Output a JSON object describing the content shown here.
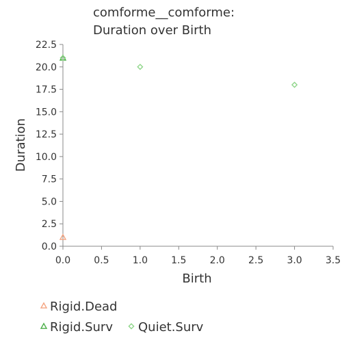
{
  "chart_data": {
    "type": "scatter",
    "title_lines": [
      "comforme__comforme:",
      "Duration over Birth"
    ],
    "xlabel": "Birth",
    "ylabel": "Duration",
    "xlim": [
      0,
      3.5
    ],
    "ylim": [
      0,
      22.5
    ],
    "x_ticks": [
      "0.0",
      "0.5",
      "1.0",
      "1.5",
      "2.0",
      "2.5",
      "3.0",
      "3.5"
    ],
    "y_ticks": [
      "0.0",
      "2.5",
      "5.0",
      "7.5",
      "10.0",
      "12.5",
      "15.0",
      "17.5",
      "20.0",
      "22.5"
    ],
    "grid": false,
    "legend_position": "bottom",
    "series": [
      {
        "name": "Rigid.Dead",
        "marker": "triangle",
        "color": "#f4a582",
        "points": [
          [
            0,
            1
          ]
        ]
      },
      {
        "name": "Rigid.Surv",
        "marker": "triangle",
        "color": "#4daf4a",
        "points": [
          [
            0,
            21
          ]
        ]
      },
      {
        "name": "Quiet.Surv",
        "marker": "diamond",
        "color": "#8fd68a",
        "points": [
          [
            0,
            21
          ],
          [
            1,
            20
          ],
          [
            3,
            18
          ]
        ]
      }
    ]
  }
}
